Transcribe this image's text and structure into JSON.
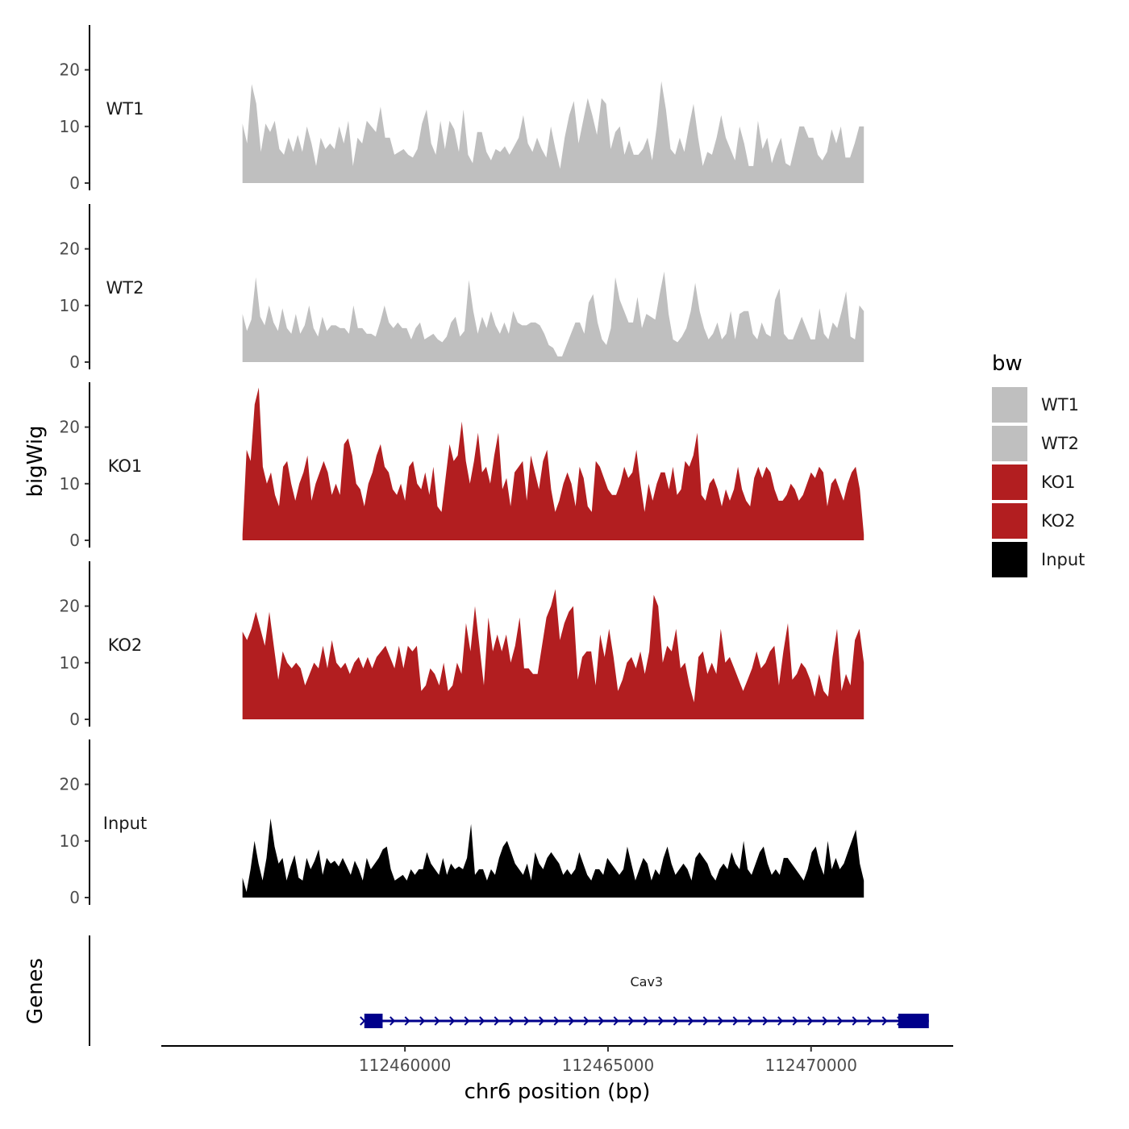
{
  "chart_data": {
    "type": "area",
    "title": "",
    "ylabel": "bigWig",
    "xlabel": "chr6 position (bp)",
    "genes_label": "Genes",
    "xlim": [
      112454000,
      112473500
    ],
    "xticks": [
      112460000,
      112465000,
      112470000
    ],
    "xtick_labels": [
      "112460000",
      "112465000",
      "112470000"
    ],
    "ylim": [
      0,
      27
    ],
    "yticks": [
      0,
      10,
      20
    ],
    "ytick_labels": [
      "0",
      "10",
      "20"
    ],
    "legend": {
      "title": "bw",
      "position": "right",
      "entries": [
        {
          "label": "WT1",
          "color": "#bfbfbf"
        },
        {
          "label": "WT2",
          "color": "#bfbfbf"
        },
        {
          "label": "KO1",
          "color": "#b21e20"
        },
        {
          "label": "KO2",
          "color": "#b21e20"
        },
        {
          "label": "Input",
          "color": "#000000"
        }
      ]
    },
    "tracks": [
      {
        "name": "WT1",
        "label": "WT1",
        "color": "#bfbfbf",
        "x_start": 112456000,
        "x_end": 112471300,
        "values": [
          10.5,
          7,
          17.5,
          14,
          5.5,
          10.5,
          9,
          11,
          6,
          5,
          8,
          5.5,
          8.5,
          5.5,
          10,
          7,
          3,
          8,
          6,
          7,
          6,
          10,
          7,
          11,
          3,
          8,
          7,
          11,
          10,
          9,
          13.5,
          8,
          8,
          5,
          5.5,
          6,
          5,
          4.5,
          6,
          10.5,
          13,
          7,
          5,
          11,
          6,
          11,
          9.5,
          5.5,
          13,
          5,
          3.5,
          9,
          9,
          5.5,
          4,
          6,
          5.5,
          6.5,
          5,
          6.5,
          8,
          12,
          7,
          5.5,
          8,
          6,
          4.5,
          10,
          6,
          2.5,
          8,
          12,
          14.5,
          7,
          11,
          15,
          12,
          8.5,
          15,
          14,
          6,
          9,
          10,
          5,
          7.5,
          5,
          5,
          6,
          8,
          4,
          10,
          18,
          13,
          6,
          5,
          8,
          5.5,
          10,
          14,
          8,
          3,
          5.5,
          5,
          8,
          12,
          8,
          6,
          4,
          10,
          7,
          3,
          3,
          11,
          6,
          8,
          3.5,
          6,
          8,
          3.5,
          3,
          6.5,
          10,
          10,
          8,
          8,
          5,
          4,
          5.5,
          9.5,
          7,
          10,
          4.5,
          4.5,
          7,
          10,
          10
        ]
      },
      {
        "name": "WT2",
        "label": "WT2",
        "color": "#bfbfbf",
        "x_start": 112456000,
        "x_end": 112471300,
        "values": [
          8.5,
          5.5,
          7.5,
          15,
          8,
          6.5,
          10,
          7,
          5.5,
          9.5,
          6,
          5,
          8.5,
          5,
          6.5,
          10,
          6,
          4.5,
          8,
          5.5,
          6.5,
          6.5,
          6,
          6,
          5,
          10,
          6,
          6,
          5,
          5,
          4.5,
          7,
          10,
          7,
          6,
          7,
          6,
          6,
          4,
          6,
          7,
          4,
          4.5,
          5,
          4,
          3.5,
          4.5,
          7,
          8,
          4.5,
          5.5,
          14.5,
          9,
          5,
          8,
          6,
          9,
          6.5,
          5,
          7,
          5,
          9,
          7,
          6.5,
          6.5,
          7,
          7,
          6.5,
          5,
          3,
          2.5,
          1,
          1,
          3,
          5,
          7,
          7,
          5,
          10.5,
          12,
          7,
          4,
          3,
          6,
          15,
          11,
          9,
          7,
          7,
          11.5,
          6,
          8.5,
          8,
          7.5,
          12,
          16,
          8.5,
          4,
          3.5,
          4.5,
          6,
          9,
          14,
          9,
          6,
          4,
          5,
          7,
          4,
          5,
          9,
          4,
          8.5,
          9,
          9,
          5,
          4,
          7,
          5,
          4.5,
          11,
          13,
          5,
          4,
          4,
          6,
          8,
          6,
          4,
          4,
          9.5,
          5,
          4,
          7,
          6,
          9,
          12.5,
          4.5,
          4,
          10,
          9
        ]
      },
      {
        "name": "KO1",
        "label": "KO1",
        "color": "#b21e20",
        "x_start": 112456000,
        "x_end": 112471300,
        "values": [
          1,
          16,
          14,
          24,
          27,
          13,
          10,
          12,
          8,
          6,
          13,
          14,
          10,
          7,
          10,
          12,
          15,
          7,
          10,
          12,
          14,
          12,
          8,
          10,
          8,
          17,
          18,
          15,
          10,
          9,
          6,
          10,
          12,
          15,
          17,
          13,
          12,
          9,
          8,
          10,
          7,
          13,
          14,
          10,
          9,
          12,
          8,
          13,
          6,
          5,
          11,
          17,
          14,
          15,
          21,
          14,
          10,
          14,
          19,
          12,
          13,
          10,
          15,
          19,
          9,
          11,
          6,
          12,
          13,
          14,
          7,
          15,
          12,
          9,
          14,
          16,
          9,
          5,
          7,
          10,
          12,
          10,
          6,
          13,
          11,
          6,
          5,
          14,
          13,
          11,
          9,
          8,
          8,
          10,
          13,
          11,
          12,
          16,
          10,
          5,
          10,
          7,
          10,
          12,
          12,
          9,
          13,
          8,
          9,
          14,
          13,
          15,
          19,
          8,
          7,
          10,
          11,
          9,
          6,
          9,
          7,
          9,
          13,
          9,
          7,
          6,
          11,
          13,
          11,
          13,
          12,
          9,
          7,
          7,
          8,
          10,
          9,
          7,
          8,
          10,
          12,
          11,
          13,
          12,
          6,
          10,
          11,
          9,
          7,
          10,
          12,
          13,
          9,
          1
        ]
      },
      {
        "name": "KO2",
        "label": "KO2",
        "color": "#b21e20",
        "x_start": 112456000,
        "x_end": 112471300,
        "values": [
          15.5,
          14,
          16,
          19,
          16,
          13,
          19,
          13,
          7,
          12,
          10,
          9,
          10,
          9,
          6,
          8,
          10,
          9,
          13,
          9,
          14,
          10,
          9,
          10,
          8,
          10,
          11,
          9,
          11,
          9,
          11,
          12,
          13,
          11,
          9,
          13,
          9,
          13,
          12,
          13,
          5,
          6,
          9,
          8,
          6,
          10,
          5,
          6,
          10,
          8,
          17,
          12,
          20,
          13,
          6,
          18,
          12,
          15,
          12,
          15,
          10,
          13,
          18,
          9,
          9,
          8,
          8,
          13,
          18,
          20,
          23,
          14,
          17,
          19,
          20,
          7,
          11,
          12,
          12,
          6,
          15,
          11,
          16,
          11,
          5,
          7,
          10,
          11,
          9,
          12,
          8,
          12,
          22,
          20,
          10,
          13,
          12,
          16,
          9,
          10,
          6,
          3,
          11,
          12,
          8,
          10,
          8,
          16,
          10,
          11,
          9,
          7,
          5,
          7,
          9,
          12,
          9,
          10,
          12,
          13,
          6,
          12,
          17,
          7,
          8,
          10,
          9,
          7,
          4,
          8,
          5,
          4,
          11,
          16,
          5,
          8,
          6,
          14,
          16,
          10
        ]
      },
      {
        "name": "Input",
        "label": "Input",
        "color": "#000000",
        "x_start": 112456000,
        "x_end": 112471300,
        "values": [
          3.5,
          1,
          5,
          10,
          6,
          3,
          7,
          14,
          9,
          6,
          7,
          3,
          5.5,
          7.5,
          3.5,
          3,
          7,
          5,
          6.5,
          8.5,
          4,
          7,
          6,
          6.5,
          5.5,
          7,
          5.5,
          4,
          6.5,
          5,
          3,
          7,
          5,
          6,
          7,
          8.5,
          9,
          5,
          3,
          3.5,
          4,
          3,
          5,
          4,
          5,
          5,
          8,
          6,
          5,
          4,
          7,
          4,
          6,
          5,
          5.5,
          5,
          7,
          13,
          4,
          5,
          5,
          3,
          5,
          4,
          7,
          9,
          10,
          8,
          6,
          5,
          4,
          6,
          3,
          8,
          6,
          5,
          7,
          8,
          7,
          6,
          4,
          5,
          4,
          5,
          8,
          6,
          4,
          3,
          5,
          5,
          4,
          7,
          6,
          5,
          4,
          5,
          9,
          6,
          3,
          5,
          7,
          6,
          3,
          5,
          4,
          7,
          9,
          6,
          4,
          5,
          6,
          5,
          3,
          7,
          8,
          7,
          6,
          4,
          3,
          5,
          6,
          5,
          8,
          6,
          5,
          10,
          5,
          4,
          6,
          8,
          9,
          6,
          4,
          5,
          4,
          7,
          7,
          6,
          5,
          4,
          3,
          5,
          8,
          9,
          6,
          4,
          10,
          5,
          7,
          5,
          6,
          8,
          10,
          12,
          6,
          3
        ]
      }
    ],
    "genes": [
      {
        "name": "Cav3",
        "start": 112459000,
        "end": 112472900,
        "strand": "+",
        "exons": [
          [
            112459000,
            112459450
          ],
          [
            112472150,
            112472900
          ]
        ]
      }
    ]
  }
}
